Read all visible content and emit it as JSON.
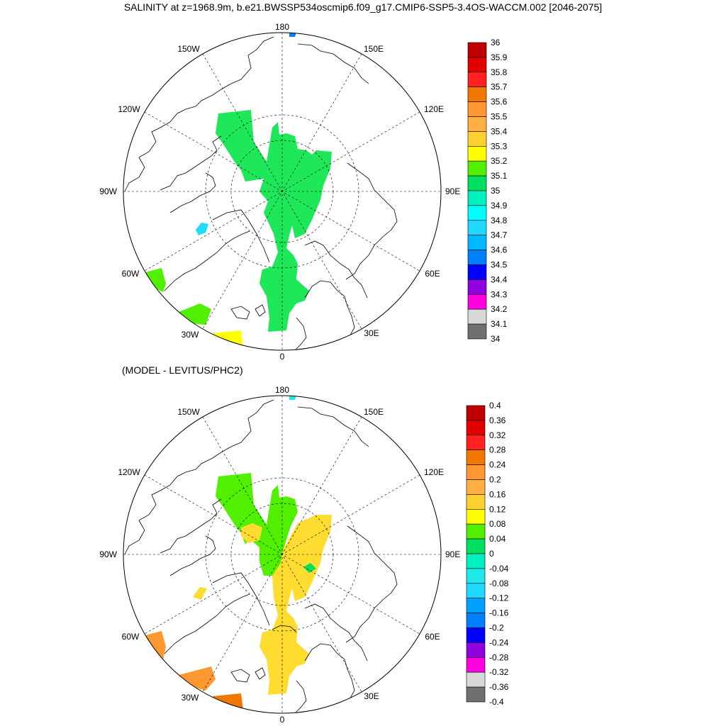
{
  "title": "SALINITY at z=1968.9m, b.e21.BWSSP534oscmip6.f09_g17.CMIP6-SSP5-3.4OS-WACCM.002 [2046-2075]",
  "subtitle": "(MODEL - LEVITUS/PHC2)",
  "panels": [
    {
      "name": "salinity",
      "lon_labels": {
        "lon_180": "180",
        "lon_150E": "150E",
        "lon_120E": "120E",
        "lon_90E": "90E",
        "lon_60E": "60E",
        "lon_30E": "30E",
        "lon_0": "0",
        "lon_30W": "30W",
        "lon_60W": "60W",
        "lon_90W": "90W",
        "lon_120W": "120W",
        "lon_150W": "150W"
      },
      "colorbar": {
        "labels": [
          "36",
          "35.9",
          "35.8",
          "35.7",
          "35.6",
          "35.5",
          "35.4",
          "35.3",
          "35.2",
          "35.1",
          "35",
          "34.9",
          "34.8",
          "34.7",
          "34.6",
          "34.5",
          "34.4",
          "34.3",
          "34.2",
          "34.1",
          "34"
        ],
        "colors": [
          "#c00000",
          "#e00000",
          "#ff2020",
          "#f07800",
          "#ff9830",
          "#ffb040",
          "#ffd030",
          "#ffff00",
          "#50f000",
          "#00e060",
          "#00f0c0",
          "#00ffff",
          "#20d8ff",
          "#00b8ff",
          "#0080ff",
          "#0000ff",
          "#9000e0",
          "#ff00e0",
          "#d8d8d8",
          "#707070"
        ]
      },
      "fill_colors": {
        "main": "#1ee85a",
        "cyan_patch": "#20ddff",
        "green": "#50f000",
        "yellow": "#ffff00",
        "blue_dot": "#0080ff"
      }
    },
    {
      "name": "difference",
      "lon_labels": {
        "lon_180": "180",
        "lon_150E": "150E",
        "lon_120E": "120E",
        "lon_90E": "90E",
        "lon_60E": "60E",
        "lon_30E": "30E",
        "lon_0": "0",
        "lon_30W": "30W",
        "lon_60W": "60W",
        "lon_90W": "90W",
        "lon_120W": "120W",
        "lon_150W": "150W"
      },
      "colorbar": {
        "labels": [
          "0.4",
          "0.36",
          "0.32",
          "0.28",
          "0.24",
          "0.2",
          "0.16",
          "0.12",
          "0.08",
          "0.04",
          "0",
          "-0.04",
          "-0.08",
          "-0.12",
          "-0.16",
          "-0.2",
          "-0.24",
          "-0.28",
          "-0.32",
          "-0.36",
          "-0.4"
        ],
        "colors": [
          "#c00000",
          "#e00000",
          "#ff2020",
          "#f07800",
          "#ff9830",
          "#ffb040",
          "#ffd030",
          "#ffff00",
          "#50f000",
          "#00e060",
          "#00f0c0",
          "#20e8e8",
          "#20d8ff",
          "#00a0ff",
          "#0080ff",
          "#0000ff",
          "#9000e0",
          "#ff00e0",
          "#d8d8d8",
          "#707070"
        ]
      },
      "fill_colors": {
        "green": "#50f000",
        "yellow": "#ffdd30",
        "orange": "#ff9830",
        "dark_orange": "#f07800",
        "cyan_dot": "#20e8e8",
        "small_green": "#00e060"
      }
    }
  ]
}
